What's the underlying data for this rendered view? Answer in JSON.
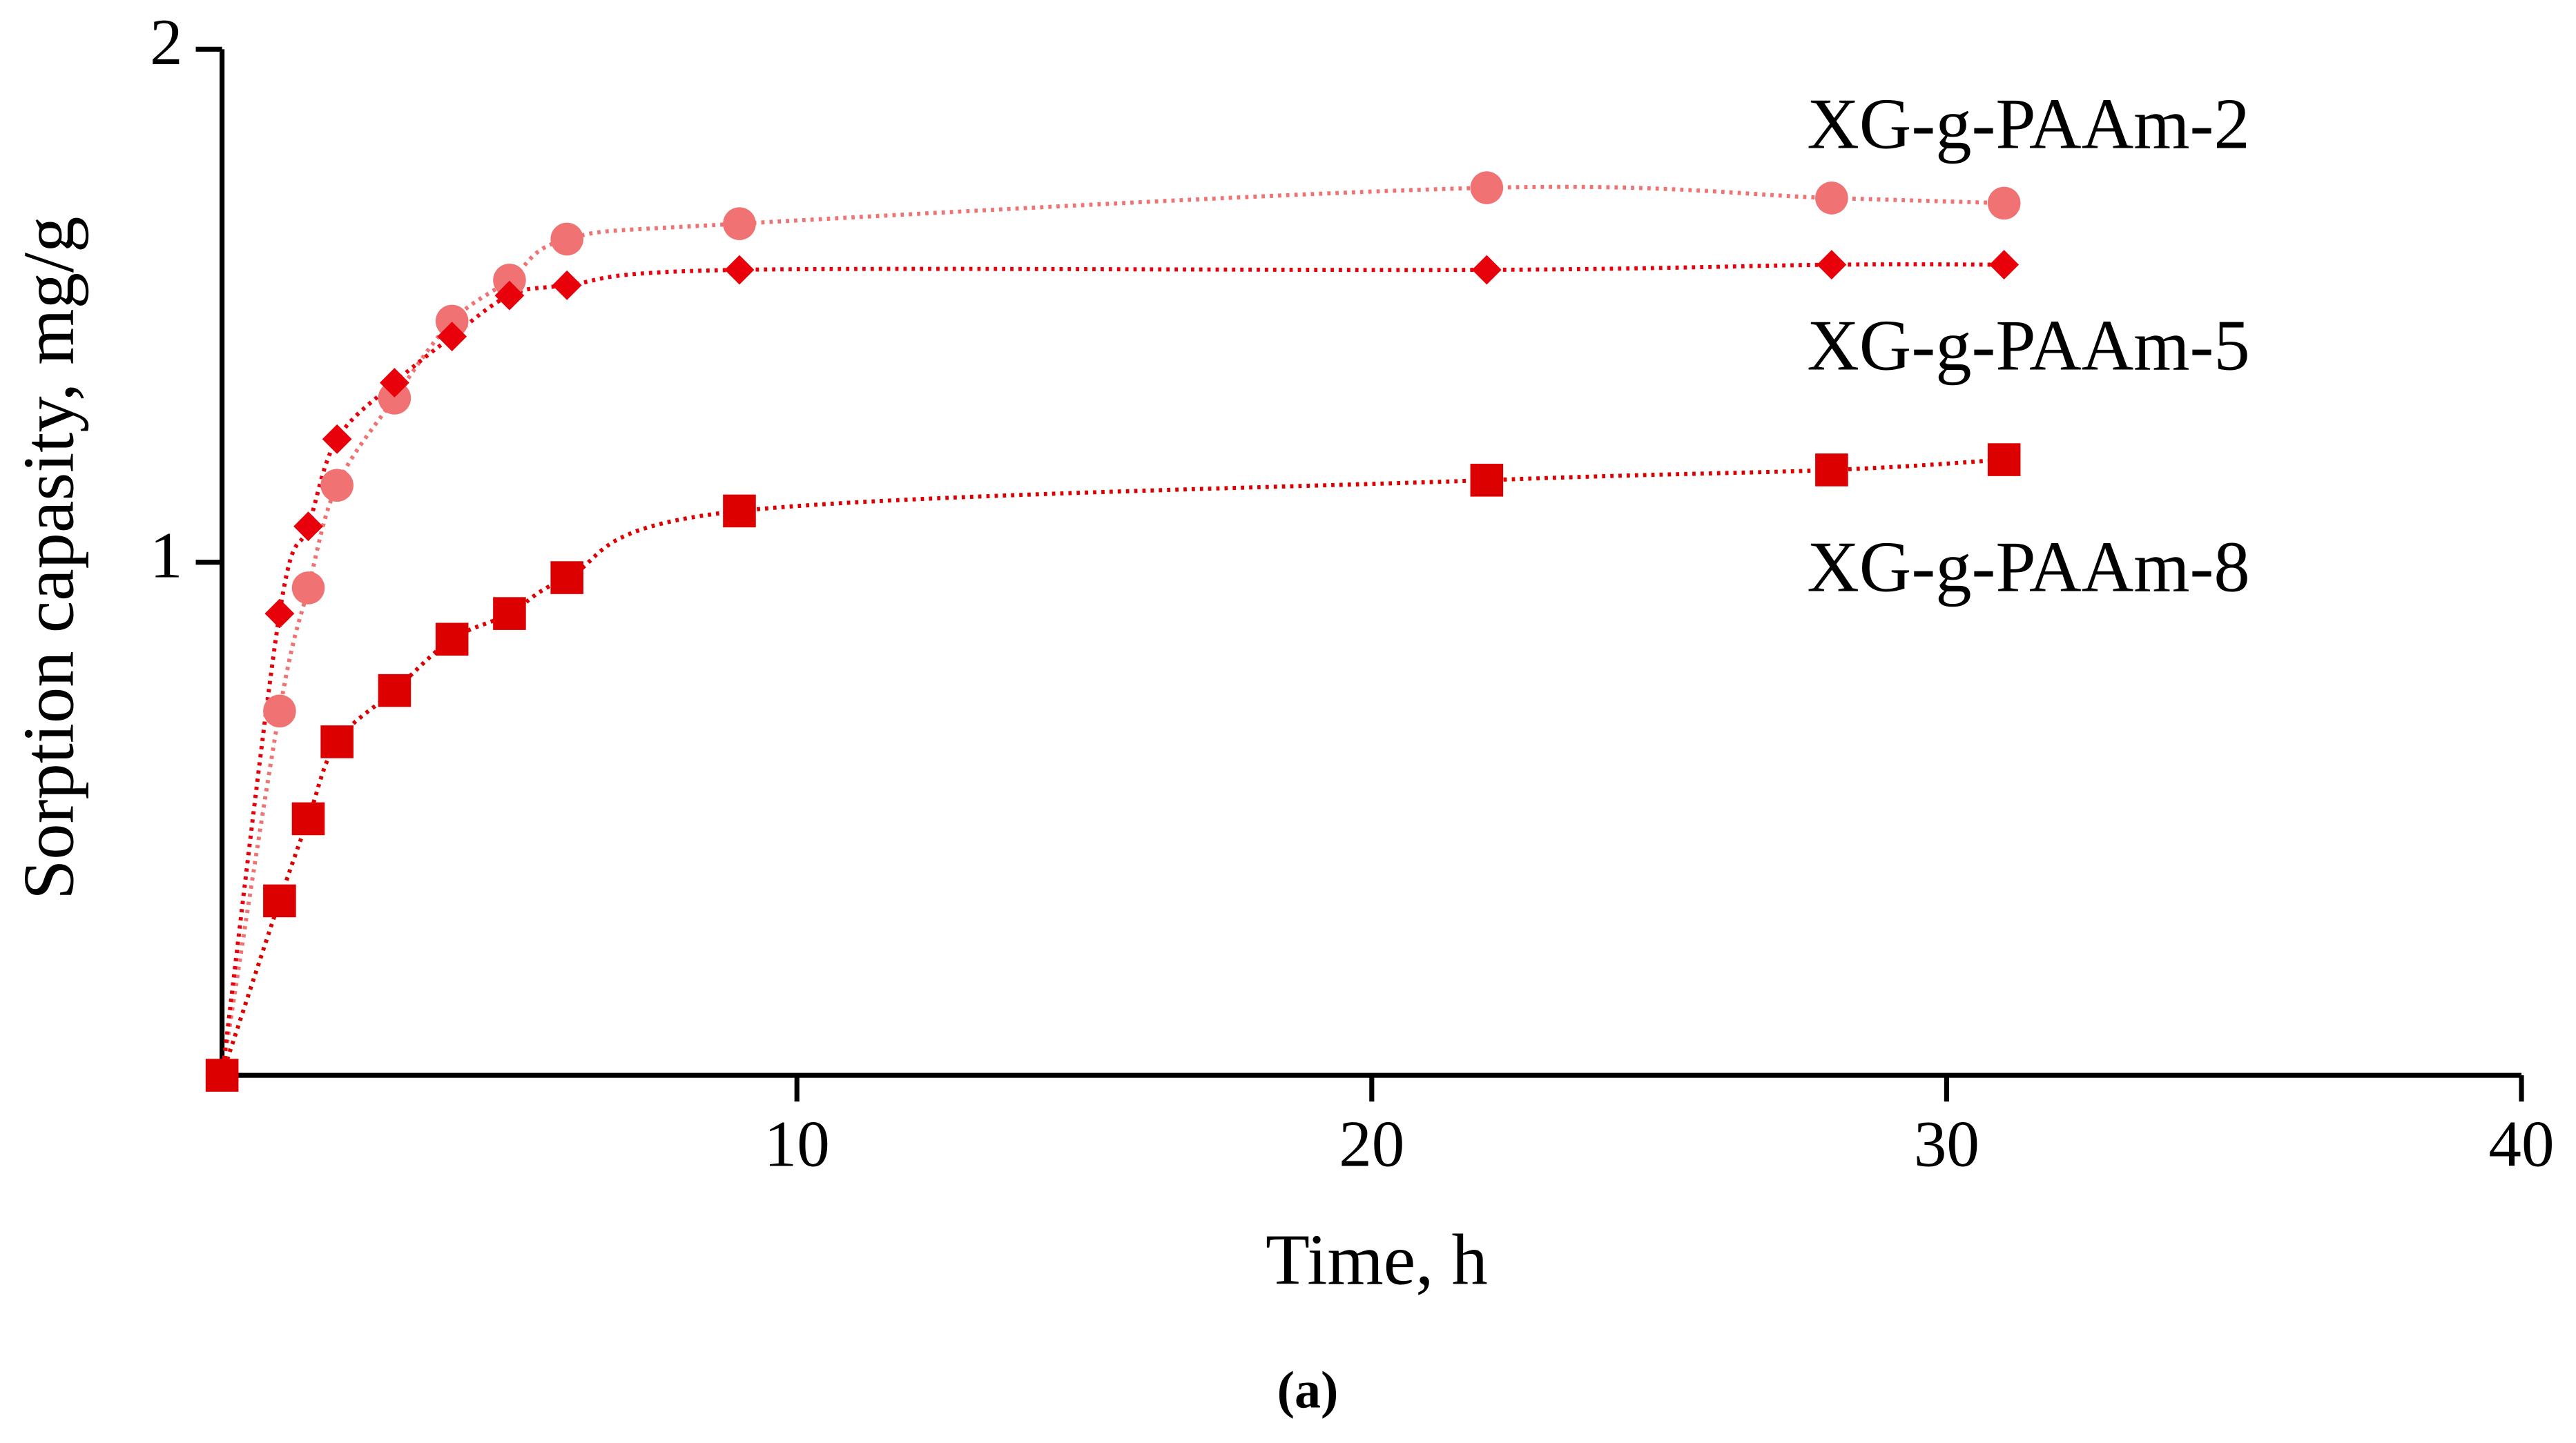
{
  "chart_data": {
    "type": "scatter",
    "x_label": "Time, h",
    "y_label": "Sorption capasity, mg/g",
    "caption": "(a)",
    "xlim": [
      0,
      40
    ],
    "xticks": [
      10,
      20,
      30,
      40
    ],
    "ylim": [
      0,
      2
    ],
    "yticks": [
      1,
      2
    ],
    "x": [
      0,
      1,
      1.5,
      2,
      3,
      4,
      5,
      6,
      9,
      22,
      28,
      31
    ],
    "series": [
      {
        "name": "XG-g-PAAm-2",
        "color": "#f07272",
        "marker": "circle",
        "values": [
          0,
          0.71,
          0.95,
          1.15,
          1.32,
          1.47,
          1.55,
          1.63,
          1.66,
          1.73,
          1.71,
          1.7
        ]
      },
      {
        "name": "XG-g-PAAm-5",
        "color": "#e8000b",
        "marker": "diamond",
        "values": [
          0,
          0.9,
          1.07,
          1.24,
          1.35,
          1.44,
          1.52,
          1.54,
          1.57,
          1.57,
          1.58,
          1.58
        ]
      },
      {
        "name": "XG-g-PAAm-8",
        "color": "#dc0000",
        "marker": "square",
        "values": [
          0,
          0.34,
          0.5,
          0.65,
          0.75,
          0.85,
          0.9,
          0.97,
          1.1,
          1.16,
          1.18,
          1.2
        ]
      }
    ]
  }
}
